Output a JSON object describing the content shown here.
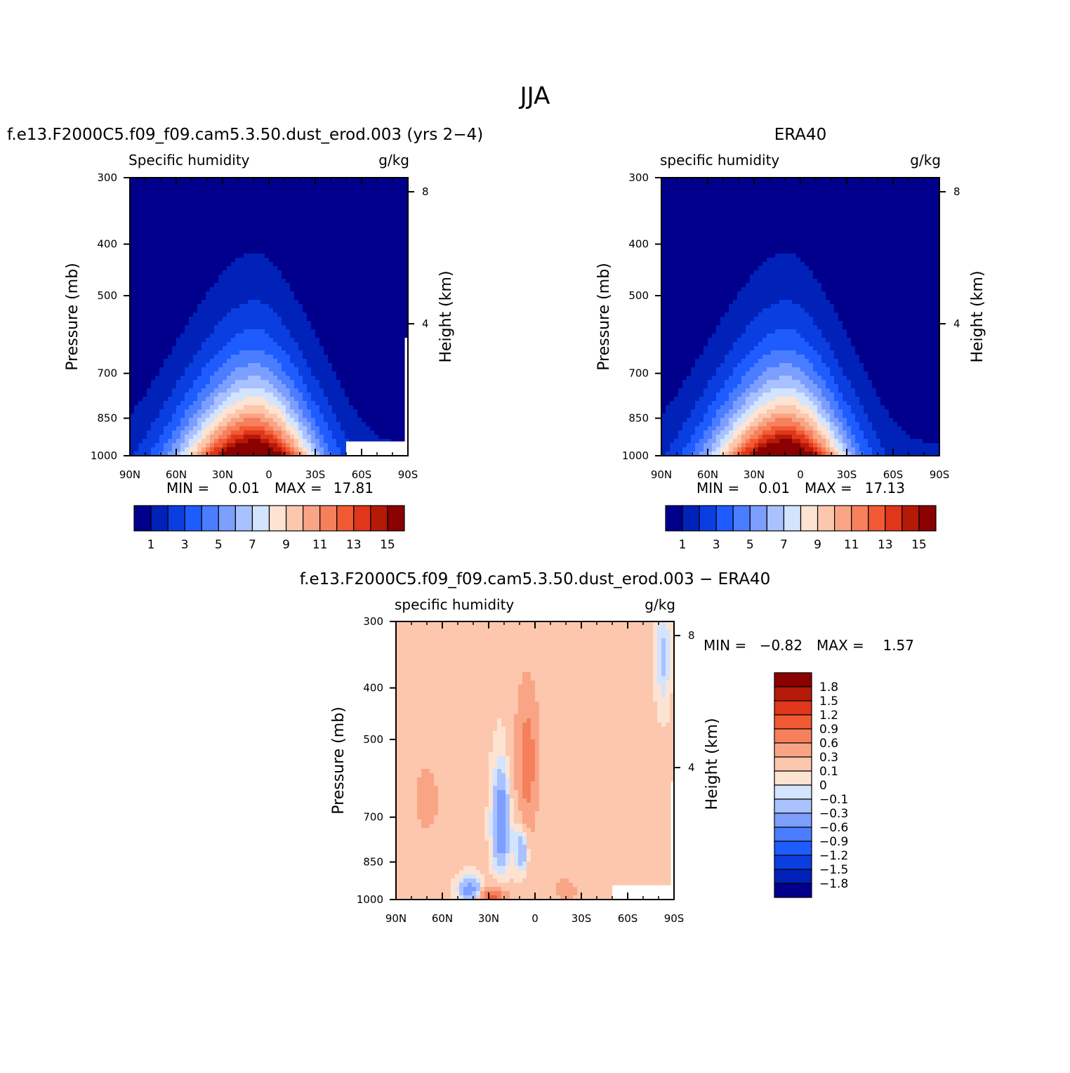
{
  "figure": {
    "title": "JJA"
  },
  "chart_data": [
    {
      "type": "heatmap",
      "id": "model",
      "title": "f.e13.F2000C5.f09_f09.cam5.3.50.dust_erod.003 (yrs 2−4)",
      "left_label": "Specific humidity",
      "right_label": "g/kg",
      "ylabel": "Pressure (mb)",
      "right_axis_label": "Height (km)",
      "x_ticks": [
        "90N",
        "60N",
        "30N",
        "0",
        "30S",
        "60S",
        "90S"
      ],
      "x_range": [
        90,
        -90
      ],
      "y_ticks": [
        "300",
        "400",
        "500",
        "700",
        "850",
        "1000"
      ],
      "y_scale": "log pressure",
      "y_range": [
        300,
        1000
      ],
      "right_ticks": [
        "8",
        "4"
      ],
      "min_label": "MIN =",
      "min_value": "0.01",
      "max_label": "MAX =",
      "max_value": "17.81",
      "peak_latitude": 10,
      "levels": [
        1,
        2,
        3,
        4,
        5,
        6,
        7,
        8,
        9,
        10,
        11,
        12,
        13,
        14,
        15
      ],
      "colorbar_labels": [
        "1",
        "3",
        "5",
        "7",
        "9",
        "11",
        "13",
        "15"
      ]
    },
    {
      "type": "heatmap",
      "id": "obs",
      "title": "ERA40",
      "left_label": "specific humidity",
      "right_label": "g/kg",
      "ylabel": "Pressure (mb)",
      "right_axis_label": "Height (km)",
      "x_ticks": [
        "90N",
        "60N",
        "30N",
        "0",
        "30S",
        "60S",
        "90S"
      ],
      "x_range": [
        90,
        -90
      ],
      "y_ticks": [
        "300",
        "400",
        "500",
        "700",
        "850",
        "1000"
      ],
      "y_scale": "log pressure",
      "y_range": [
        300,
        1000
      ],
      "right_ticks": [
        "8",
        "4"
      ],
      "min_label": "MIN =",
      "min_value": "0.01",
      "max_label": "MAX =",
      "max_value": "17.13",
      "peak_latitude": 10,
      "levels": [
        1,
        2,
        3,
        4,
        5,
        6,
        7,
        8,
        9,
        10,
        11,
        12,
        13,
        14,
        15
      ],
      "colorbar_labels": [
        "1",
        "3",
        "5",
        "7",
        "9",
        "11",
        "13",
        "15"
      ]
    },
    {
      "type": "heatmap",
      "id": "diff",
      "title": "f.e13.F2000C5.f09_f09.cam5.3.50.dust_erod.003 − ERA40",
      "left_label": "specific humidity",
      "right_label": "g/kg",
      "ylabel": "Pressure (mb)",
      "right_axis_label": "Height (km)",
      "x_ticks": [
        "90N",
        "60N",
        "30N",
        "0",
        "30S",
        "60S",
        "90S"
      ],
      "x_range": [
        90,
        -90
      ],
      "y_ticks": [
        "300",
        "400",
        "500",
        "700",
        "850",
        "1000"
      ],
      "y_scale": "log pressure",
      "y_range": [
        300,
        1000
      ],
      "right_ticks": [
        "8",
        "4"
      ],
      "min_label": "MIN =",
      "min_value": "−0.82",
      "max_label": "MAX =",
      "max_value": "1.57",
      "levels": [
        -1.8,
        -1.5,
        -1.2,
        -0.9,
        -0.6,
        -0.3,
        -0.1,
        0,
        0.1,
        0.3,
        0.6,
        0.9,
        1.2,
        1.5,
        1.8
      ],
      "colorbar_labels": [
        "1.8",
        "1.5",
        "1.2",
        "0.9",
        "0.6",
        "0.3",
        "0.1",
        "0",
        "−0.1",
        "−0.3",
        "−0.6",
        "−0.9",
        "−1.2",
        "−1.5",
        "−1.8"
      ]
    }
  ],
  "colors": {
    "scale": [
      "#00008c",
      "#0022b8",
      "#0a3ee0",
      "#1f5cff",
      "#4a7dff",
      "#7c9fff",
      "#a9c2ff",
      "#d3e4ff",
      "#fde3d2",
      "#fcc7ad",
      "#f9a585",
      "#f7805c",
      "#f25a33",
      "#e0361a",
      "#b51a08",
      "#8b0000"
    ]
  }
}
